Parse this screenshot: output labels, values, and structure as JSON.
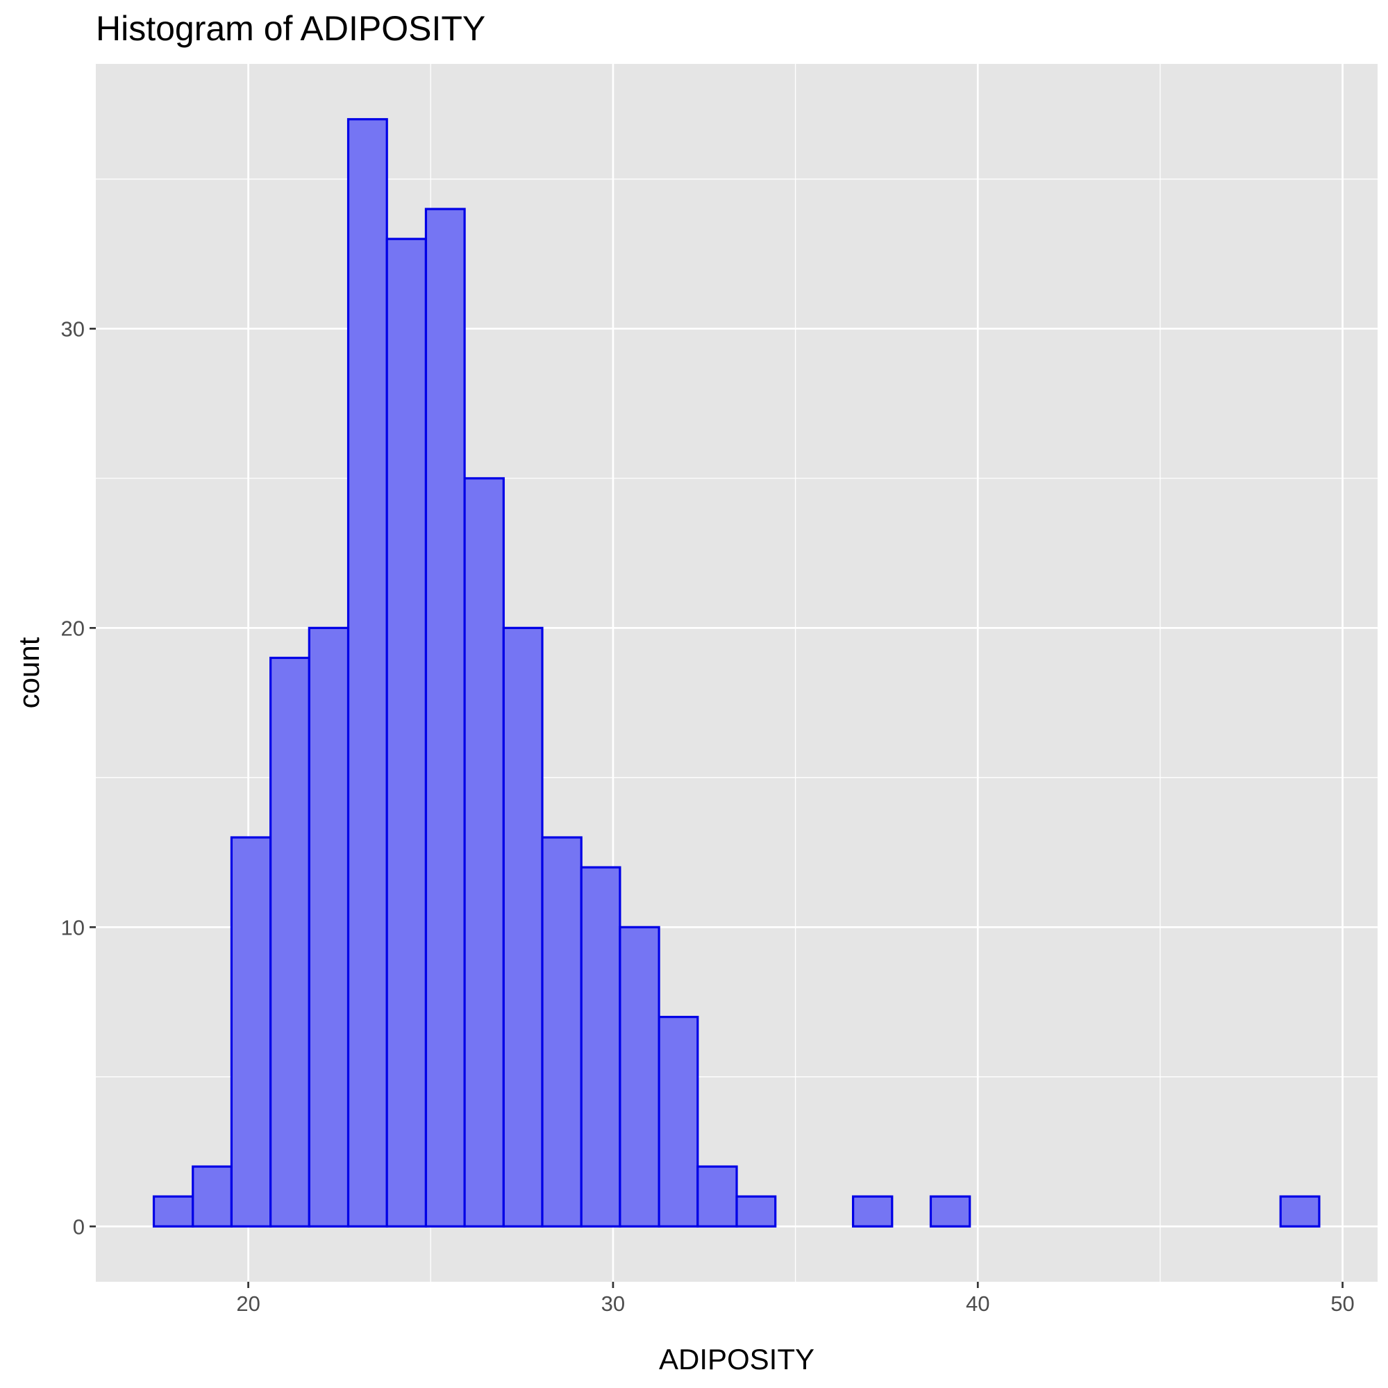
{
  "chart_data": {
    "type": "bar",
    "title": "Histogram of ADIPOSITY",
    "xlabel": "ADIPOSITY",
    "ylabel": "count",
    "bin_width": 1.0645,
    "bins": [
      {
        "x_start": 17.41,
        "x_end": 18.48,
        "count": 1
      },
      {
        "x_start": 18.48,
        "x_end": 19.54,
        "count": 2
      },
      {
        "x_start": 19.54,
        "x_end": 20.61,
        "count": 13
      },
      {
        "x_start": 20.61,
        "x_end": 21.67,
        "count": 19
      },
      {
        "x_start": 21.67,
        "x_end": 22.74,
        "count": 20
      },
      {
        "x_start": 22.74,
        "x_end": 23.8,
        "count": 37
      },
      {
        "x_start": 23.8,
        "x_end": 24.87,
        "count": 33
      },
      {
        "x_start": 24.87,
        "x_end": 25.93,
        "count": 34
      },
      {
        "x_start": 25.93,
        "x_end": 27.0,
        "count": 25
      },
      {
        "x_start": 27.0,
        "x_end": 28.06,
        "count": 20
      },
      {
        "x_start": 28.06,
        "x_end": 29.13,
        "count": 13
      },
      {
        "x_start": 29.13,
        "x_end": 30.19,
        "count": 12
      },
      {
        "x_start": 30.19,
        "x_end": 31.26,
        "count": 10
      },
      {
        "x_start": 31.26,
        "x_end": 32.32,
        "count": 7
      },
      {
        "x_start": 32.32,
        "x_end": 33.39,
        "count": 2
      },
      {
        "x_start": 33.39,
        "x_end": 34.45,
        "count": 1
      },
      {
        "x_start": 34.45,
        "x_end": 35.52,
        "count": 0
      },
      {
        "x_start": 35.52,
        "x_end": 36.58,
        "count": 0
      },
      {
        "x_start": 36.58,
        "x_end": 37.65,
        "count": 1
      },
      {
        "x_start": 37.65,
        "x_end": 38.71,
        "count": 0
      },
      {
        "x_start": 38.71,
        "x_end": 39.78,
        "count": 1
      },
      {
        "x_start": 39.78,
        "x_end": 40.84,
        "count": 0
      },
      {
        "x_start": 40.84,
        "x_end": 41.91,
        "count": 0
      },
      {
        "x_start": 41.91,
        "x_end": 42.97,
        "count": 0
      },
      {
        "x_start": 42.97,
        "x_end": 44.04,
        "count": 0
      },
      {
        "x_start": 44.04,
        "x_end": 45.1,
        "count": 0
      },
      {
        "x_start": 45.1,
        "x_end": 46.17,
        "count": 0
      },
      {
        "x_start": 46.17,
        "x_end": 47.23,
        "count": 0
      },
      {
        "x_start": 47.23,
        "x_end": 48.3,
        "count": 0
      },
      {
        "x_start": 48.3,
        "x_end": 49.36,
        "count": 1
      }
    ],
    "xlim": [
      15.82,
      50.96
    ],
    "ylim": [
      -1.85,
      38.85
    ],
    "x_ticks": [
      20,
      30,
      40,
      50
    ],
    "x_tick_labels": [
      "20",
      "30",
      "40",
      "50"
    ],
    "y_ticks": [
      0,
      10,
      20,
      30
    ],
    "y_tick_labels": [
      "0",
      "10",
      "20",
      "30"
    ],
    "grid": true,
    "legend": "none",
    "colors": {
      "bar_fill": "#7575f3",
      "bar_outline": "#0000e6",
      "panel_background": "#e5e5e5",
      "grid": "#ffffff"
    }
  }
}
